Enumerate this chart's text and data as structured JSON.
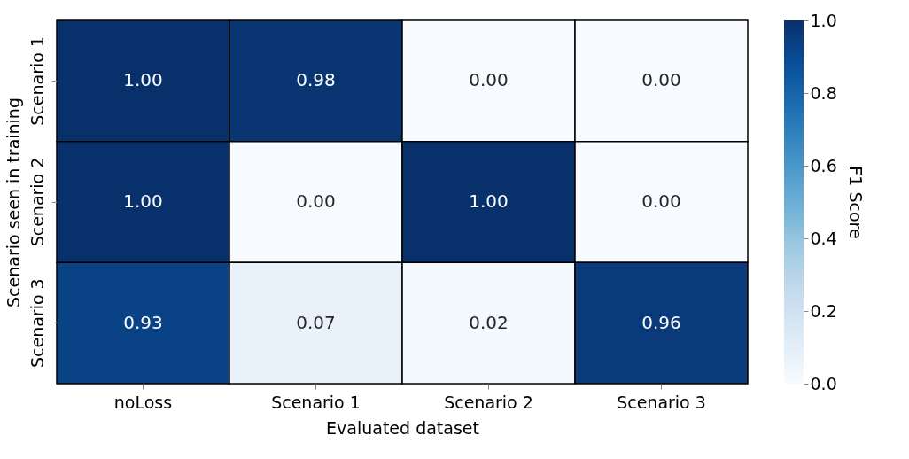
{
  "chart_data": {
    "type": "heatmap",
    "xlabel": "Evaluated dataset",
    "ylabel": "Scenario seen in training",
    "clabel": "F1 Score",
    "categories": [
      "noLoss",
      "Scenario 1",
      "Scenario 2",
      "Scenario 3"
    ],
    "y_categories": [
      "Scenario 1",
      "Scenario 2",
      "Scenario 3"
    ],
    "cells": [
      [
        1.0,
        0.98,
        0.0,
        0.0
      ],
      [
        1.0,
        0.0,
        1.0,
        0.0
      ],
      [
        0.93,
        0.07,
        0.02,
        0.96
      ]
    ],
    "cell_labels": [
      [
        "1.00",
        "0.98",
        "0.00",
        "0.00"
      ],
      [
        "1.00",
        "0.00",
        "1.00",
        "0.00"
      ],
      [
        "0.93",
        "0.07",
        "0.02",
        "0.96"
      ]
    ],
    "clim": [
      0,
      1
    ],
    "cticks": [
      {
        "value": 0,
        "label": "0.0"
      },
      {
        "value": 0.2,
        "label": "0.2"
      },
      {
        "value": 0.4,
        "label": "0.4"
      },
      {
        "value": 0.6,
        "label": "0.6"
      },
      {
        "value": 0.8,
        "label": "0.8"
      },
      {
        "value": 1,
        "label": "1.0"
      }
    ]
  }
}
